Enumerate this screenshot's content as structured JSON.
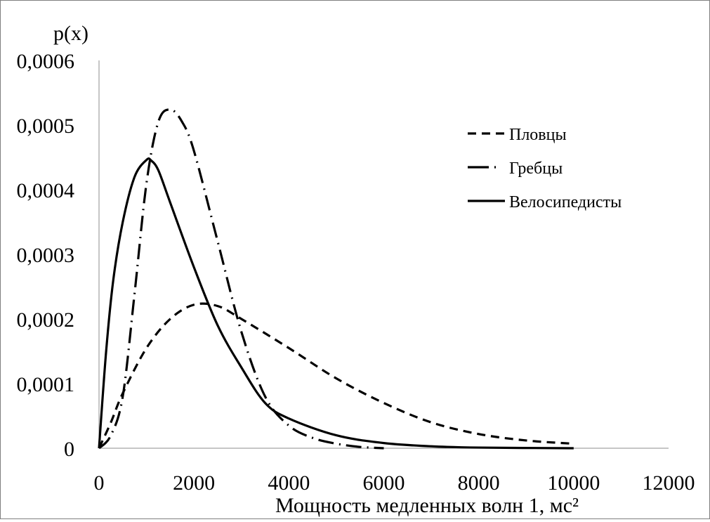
{
  "chart_data": {
    "type": "line",
    "title": "",
    "ylabel": "p(x)",
    "xlabel": "Мощность медленных волн 1, мс²",
    "xlim": [
      0,
      12000
    ],
    "ylim": [
      0,
      0.0006
    ],
    "x_ticks": [
      0,
      2000,
      4000,
      6000,
      8000,
      10000,
      12000
    ],
    "x_tick_labels": [
      "0",
      "2000",
      "4000",
      "6000",
      "8000",
      "10000",
      "12000"
    ],
    "y_ticks": [
      0,
      0.0001,
      0.0002,
      0.0003,
      0.0004,
      0.0005,
      0.0006
    ],
    "y_tick_labels": [
      "0",
      "0,0001",
      "0,0002",
      "0,0003",
      "0,0004",
      "0,0005",
      "0,0006"
    ],
    "grid": false,
    "legend_position": "right",
    "series": [
      {
        "name": "Пловцы",
        "style": "dashed",
        "x": [
          0,
          250,
          500,
          1000,
          1500,
          2000,
          2500,
          3000,
          4000,
          5000,
          6000,
          7000,
          8000,
          9000,
          10000
        ],
        "y": [
          0,
          4e-05,
          8.5e-05,
          0.000155,
          0.0002,
          0.000222,
          0.00022,
          0.0002,
          0.000155,
          0.000108,
          7e-05,
          4e-05,
          2.2e-05,
          1.2e-05,
          7e-06
        ]
      },
      {
        "name": "Гребцы",
        "style": "dashdot",
        "x": [
          0,
          250,
          500,
          750,
          1000,
          1250,
          1500,
          1750,
          2000,
          2500,
          3000,
          3500,
          4000,
          4500,
          5000,
          5500,
          6000
        ],
        "y": [
          0,
          2e-05,
          8e-05,
          0.00024,
          0.00041,
          0.000505,
          0.000524,
          0.000505,
          0.00046,
          0.00032,
          0.00018,
          8e-05,
          3.5e-05,
          1.6e-05,
          7e-06,
          2e-06,
          0
        ]
      },
      {
        "name": "Велосипедисты",
        "style": "solid",
        "x": [
          0,
          150,
          300,
          500,
          750,
          1000,
          1100,
          1250,
          1500,
          2000,
          2500,
          3000,
          3500,
          4000,
          5000,
          6000,
          7000,
          8000,
          10000
        ],
        "y": [
          0,
          0.00015,
          0.00026,
          0.00035,
          0.00042,
          0.000446,
          0.000445,
          0.00043,
          0.00038,
          0.00028,
          0.00019,
          0.000125,
          7e-05,
          4.6e-05,
          2e-05,
          8e-06,
          3e-06,
          1e-06,
          0
        ]
      }
    ]
  }
}
